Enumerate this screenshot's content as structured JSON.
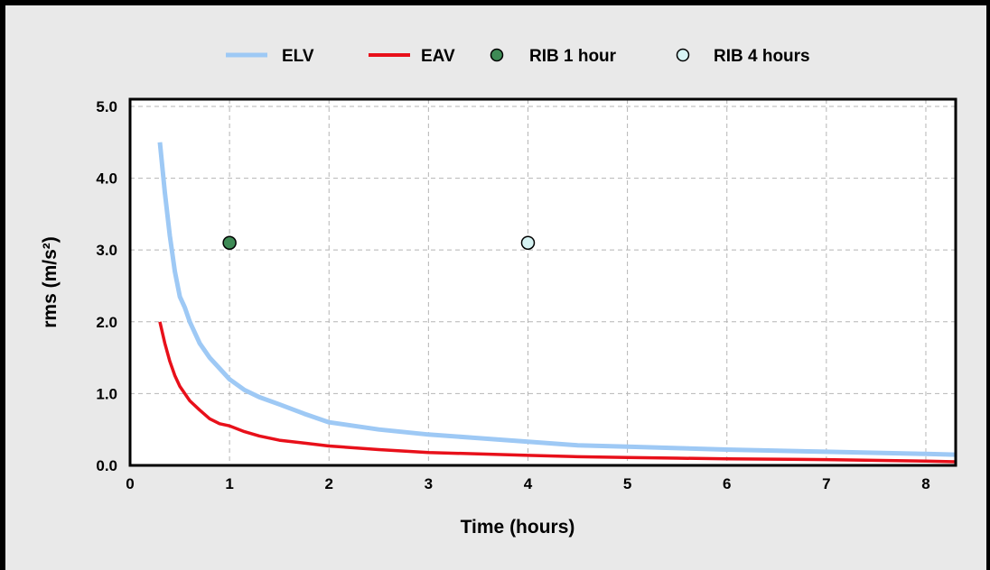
{
  "chart_data": {
    "type": "line",
    "xlabel": "Time (hours)",
    "ylabel": "rms (m/s²)",
    "xlim": [
      0,
      8.3
    ],
    "ylim": [
      0,
      5.1
    ],
    "x_ticks": [
      0,
      1,
      2,
      3,
      4,
      5,
      6,
      7,
      8
    ],
    "x_tick_labels": [
      "0",
      "1",
      "2",
      "3",
      "4",
      "5",
      "6",
      "7",
      "8"
    ],
    "y_ticks": [
      0,
      1,
      2,
      3,
      4,
      5
    ],
    "y_tick_labels": [
      "0.0",
      "1.0",
      "2.0",
      "3.0",
      "4.0",
      "5.0"
    ],
    "grid": true,
    "legend_position": "top",
    "series": [
      {
        "name": "ELV",
        "kind": "line",
        "color": "#9ec9f5",
        "x": [
          0.3,
          0.35,
          0.4,
          0.45,
          0.5,
          0.55,
          0.6,
          0.7,
          0.8,
          0.9,
          1.0,
          1.15,
          1.3,
          1.5,
          1.75,
          2.0,
          2.5,
          3.0,
          3.5,
          4.0,
          4.5,
          5.0,
          5.5,
          6.0,
          7.0,
          8.0,
          8.3
        ],
        "y": [
          4.5,
          3.8,
          3.2,
          2.7,
          2.35,
          2.2,
          2.0,
          1.7,
          1.5,
          1.35,
          1.2,
          1.05,
          0.95,
          0.85,
          0.72,
          0.6,
          0.5,
          0.43,
          0.38,
          0.33,
          0.28,
          0.26,
          0.24,
          0.22,
          0.19,
          0.16,
          0.15
        ]
      },
      {
        "name": "EAV",
        "kind": "line",
        "color": "#e8101a",
        "x": [
          0.3,
          0.35,
          0.4,
          0.45,
          0.5,
          0.55,
          0.6,
          0.7,
          0.8,
          0.9,
          1.0,
          1.15,
          1.3,
          1.5,
          1.75,
          2.0,
          2.5,
          3.0,
          3.5,
          4.0,
          4.5,
          5.0,
          5.5,
          6.0,
          7.0,
          8.0,
          8.3
        ],
        "y": [
          2.0,
          1.7,
          1.45,
          1.25,
          1.1,
          1.0,
          0.9,
          0.77,
          0.65,
          0.58,
          0.55,
          0.47,
          0.41,
          0.35,
          0.31,
          0.27,
          0.22,
          0.18,
          0.16,
          0.14,
          0.12,
          0.11,
          0.1,
          0.09,
          0.08,
          0.06,
          0.05
        ]
      },
      {
        "name": "RIB 1 hour",
        "kind": "point",
        "color": "#3e8a55",
        "x": [
          1.0
        ],
        "y": [
          3.1
        ]
      },
      {
        "name": "RIB 4 hours",
        "kind": "point",
        "color": "#d6f3f3",
        "x": [
          4.0
        ],
        "y": [
          3.1
        ]
      }
    ]
  }
}
